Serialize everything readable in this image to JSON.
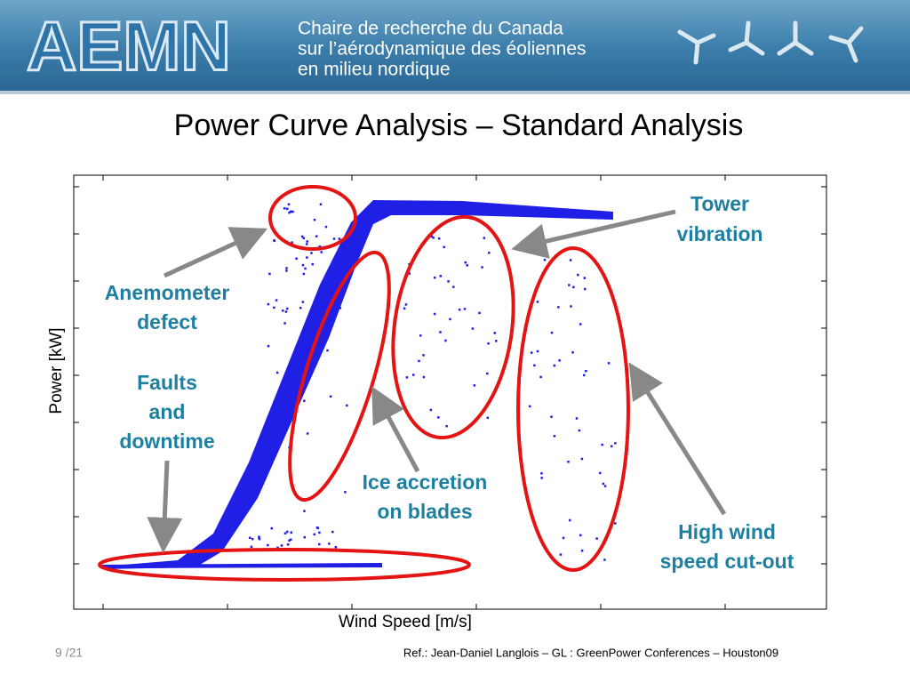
{
  "header": {
    "logo": "AEMN",
    "lines": [
      "Chaire de recherche du Canada",
      "sur l’aérodynamique des éoliennes",
      "en milieu nordique"
    ]
  },
  "title": "Power Curve Analysis – Standard Analysis",
  "chart": {
    "xlabel": "Wind Speed [m/s]",
    "ylabel": "Power [kW]",
    "annotations": [
      {
        "lines": [
          "Tower",
          "vibration"
        ]
      },
      {
        "lines": [
          "Anemometer",
          "defect"
        ]
      },
      {
        "lines": [
          "Faults",
          "and",
          "downtime"
        ]
      },
      {
        "lines": [
          "Ice accretion",
          "on blades"
        ]
      },
      {
        "lines": [
          "High wind",
          "speed cut-out"
        ]
      }
    ]
  },
  "footer": {
    "page": "9 /21",
    "reference": "Ref.: Jean-Daniel Langlois – GL : GreenPower Conferences – Houston09"
  }
}
